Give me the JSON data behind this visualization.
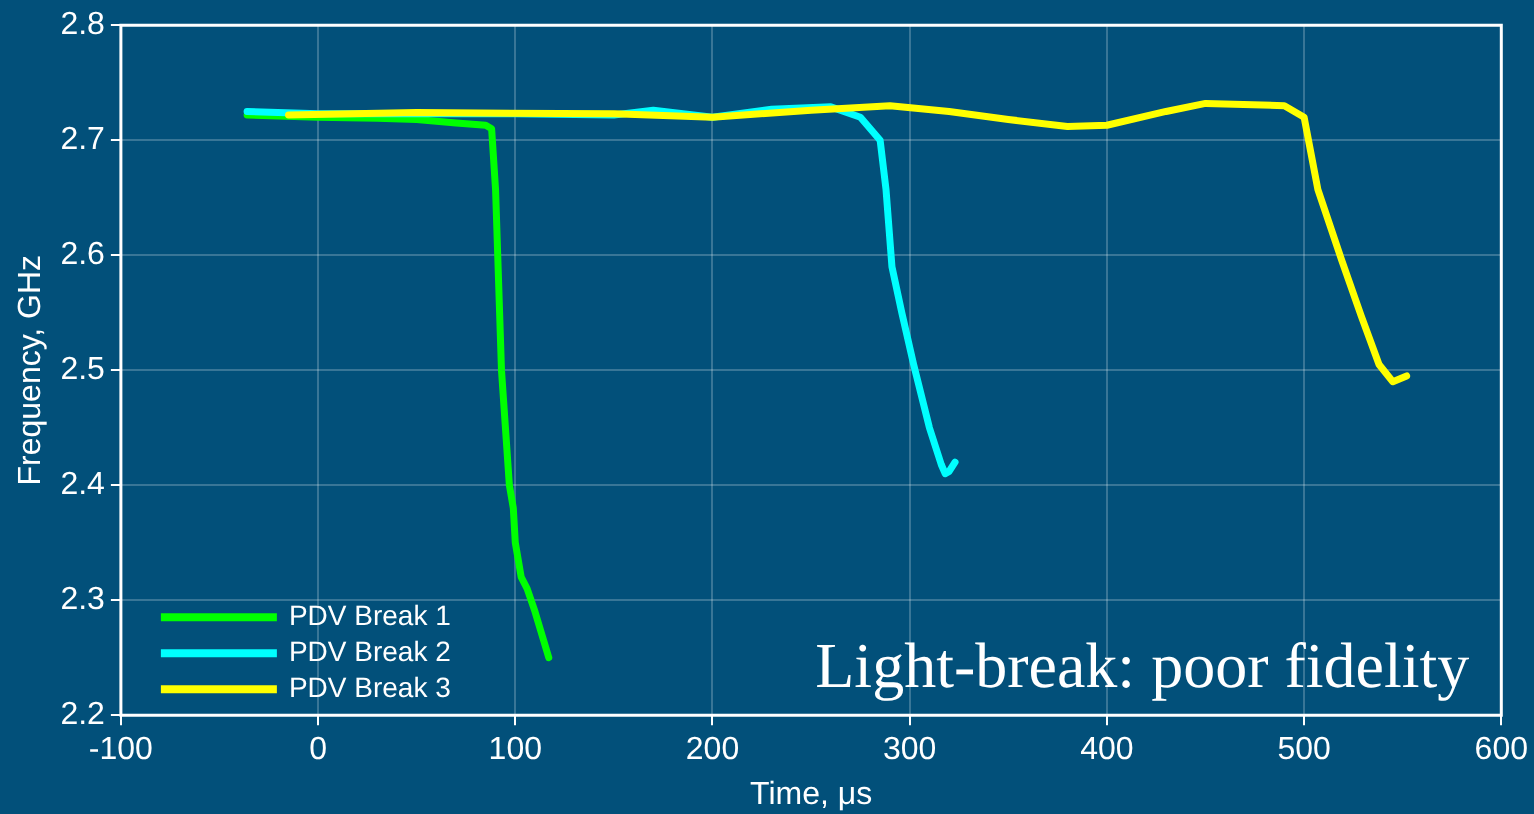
{
  "chart_data": {
    "type": "line",
    "xlabel": "Time, μs",
    "ylabel": "Frequency, GHz",
    "xlim": [
      -100,
      600
    ],
    "xticks": [
      -100,
      0,
      100,
      200,
      300,
      400,
      500,
      600
    ],
    "ylim": [
      2.2,
      2.8
    ],
    "yticks": [
      2.2,
      2.3,
      2.4,
      2.5,
      2.6,
      2.7,
      2.8
    ],
    "grid": true,
    "legend": "bottom left",
    "marker": "none",
    "line_style": "solid",
    "annotations": [
      "Light-break: poor fidelity"
    ],
    "series": [
      {
        "name": "PDV Break 1",
        "color": "#00ff00",
        "x": [
          -36,
          0,
          30,
          50,
          70,
          85,
          88,
          90,
          93,
          97,
          99,
          100,
          103,
          106,
          110,
          117
        ],
        "values": [
          2.722,
          2.72,
          2.719,
          2.718,
          2.715,
          2.713,
          2.71,
          2.657,
          2.5,
          2.4,
          2.38,
          2.35,
          2.32,
          2.31,
          2.29,
          2.25
        ]
      },
      {
        "name": "PDV Break 2",
        "color": "#00ffff",
        "x": [
          -36,
          0,
          100,
          150,
          170,
          200,
          230,
          260,
          275,
          285,
          288,
          291,
          296,
          302,
          310,
          316,
          318,
          320,
          323
        ],
        "values": [
          2.725,
          2.723,
          2.723,
          2.722,
          2.726,
          2.72,
          2.727,
          2.729,
          2.72,
          2.7,
          2.657,
          2.59,
          2.55,
          2.505,
          2.45,
          2.418,
          2.41,
          2.412,
          2.42
        ]
      },
      {
        "name": "PDV Break 3",
        "color": "#ffff00",
        "x": [
          -15,
          50,
          150,
          200,
          250,
          290,
          320,
          350,
          380,
          400,
          430,
          450,
          490,
          500,
          507,
          519,
          529,
          538,
          545,
          552
        ],
        "values": [
          2.722,
          2.724,
          2.723,
          2.72,
          2.726,
          2.73,
          2.725,
          2.718,
          2.712,
          2.713,
          2.725,
          2.732,
          2.73,
          2.72,
          2.657,
          2.596,
          2.547,
          2.505,
          2.49,
          2.495
        ]
      }
    ]
  }
}
